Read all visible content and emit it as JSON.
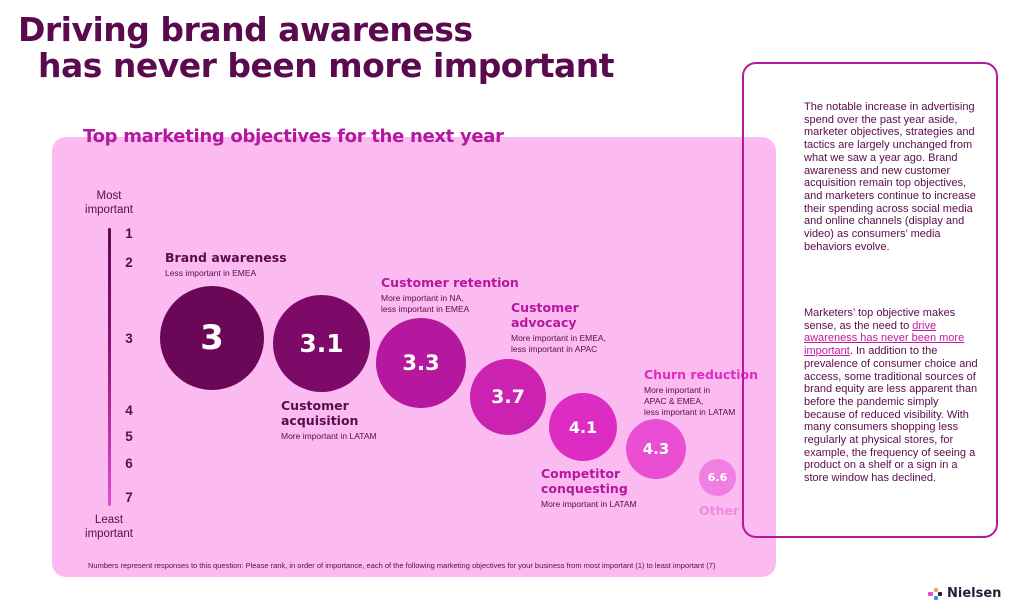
{
  "page": {
    "title_line1": "Driving brand awareness",
    "title_line2": "has never been more important"
  },
  "chart_data": {
    "type": "scatter",
    "title": "Top marketing objectives for the next year",
    "axis": {
      "top_label": [
        "Most",
        "important"
      ],
      "bottom_label": [
        "Least",
        "important"
      ],
      "ticks": [
        "1",
        "2",
        "3",
        "4",
        "5",
        "6",
        "7"
      ],
      "range": [
        1,
        7
      ],
      "direction": "1 = most important at top"
    },
    "points": [
      {
        "name": "Brand awareness",
        "value": 3,
        "display": "3",
        "note": "Less important in EMEA",
        "color": "#6b0757"
      },
      {
        "name": "Customer acquisition",
        "value": 3.1,
        "display": "3.1",
        "note": "More important in LATAM",
        "color": "#7d0a68"
      },
      {
        "name": "Customer retention",
        "value": 3.3,
        "display": "3.3",
        "note": "More important in NA,\nless important in EMEA",
        "color": "#b5179e"
      },
      {
        "name": "Customer advocacy",
        "value": 3.7,
        "display": "3.7",
        "note": "More important in EMEA,\nless important in APAC",
        "color": "#cc22b1"
      },
      {
        "name": "Competitor conquesting",
        "value": 4.1,
        "display": "4.1",
        "note": "More important in LATAM",
        "color": "#dd2cc2"
      },
      {
        "name": "Churn reduction",
        "value": 4.3,
        "display": "4.3",
        "note": "More important in\nAPAC & EMEA,\nless important in LATAM",
        "color": "#ea4fd3"
      },
      {
        "name": "Other",
        "value": 6.6,
        "display": "6.6",
        "note": "",
        "color": "#f17fe1"
      }
    ],
    "footnote": "Numbers represent responses to this question: Please rank, in order of importance, each of the following marketing objectives for your business from most important (1) to least important (7)"
  },
  "sidebar": {
    "p1": "The notable increase in advertising spend over the past year aside, marketer objectives, strategies and tactics are largely unchanged from what we saw a year ago. Brand awareness and new customer acquisition remain top objectives, and marketers continue to increase their spending across social media and online channels (display and video) as consumers’ media behaviors evolve.",
    "p2_before": "Marketers’ top objective makes sense, as the need to ",
    "p2_link": "drive awareness has never been more important",
    "p2_after": ". In addition to the prevalence of consumer choice and access, some traditional sources of brand equity are less apparent than before the pandemic simply because of reduced visibility. With many consumers shopping less regularly at physical stores, for example, the frequency of seeing a product on a shelf or a sign in a store window has declined."
  },
  "logo": {
    "text": "Nielsen",
    "colors": [
      "#e94bd0",
      "#f4a259",
      "#3f8ef7",
      "#2a1c3a"
    ]
  },
  "colors": {
    "title": "#5b0a4e",
    "accent": "#b5179e",
    "panel": "#fbbaf0"
  }
}
